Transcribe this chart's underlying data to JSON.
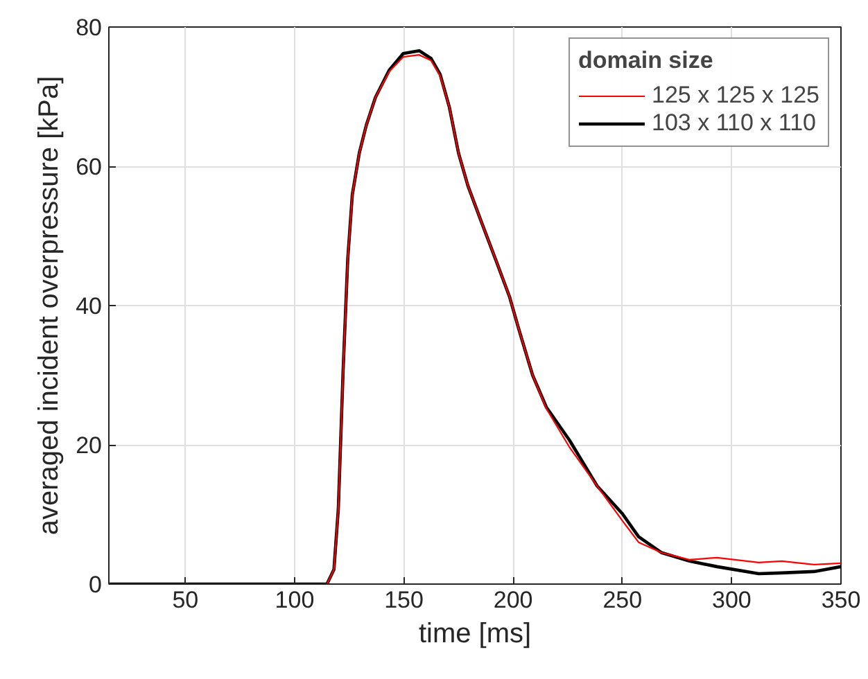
{
  "chart_data": {
    "type": "line",
    "xlabel": "time [ms]",
    "ylabel": "averaged incident overpressure [kPa]",
    "legend_title": "domain size",
    "xlim": [
      15,
      350
    ],
    "ylim": [
      0,
      80
    ],
    "xticks": [
      50,
      100,
      150,
      200,
      250,
      300,
      350
    ],
    "yticks": [
      0,
      20,
      40,
      60,
      80
    ],
    "grid": true,
    "legend": "top right",
    "line_style": "solid",
    "marker": "none",
    "x": [
      15,
      114.8,
      118,
      120,
      122.2,
      124.3,
      126.4,
      129.6,
      132.8,
      137,
      143.3,
      149.7,
      157,
      162.4,
      166.6,
      170.8,
      175,
      179.3,
      185.6,
      192,
      198.3,
      202.5,
      208.9,
      215.2,
      225.7,
      238.4,
      250,
      257.4,
      268,
      280.7,
      293.3,
      312.4,
      322.9,
      337.7,
      350
    ],
    "series": [
      {
        "name": "125 x 125 x 125",
        "color": "#ff0000",
        "values": [
          0,
          0,
          2.1,
          10.8,
          30.7,
          46.6,
          55.9,
          61.9,
          65.9,
          69.9,
          73.6,
          75.7,
          76.0,
          75.2,
          73.0,
          68.5,
          61.9,
          57.2,
          51.9,
          46.6,
          41.3,
          36.7,
          30,
          25.2,
          19.7,
          14.1,
          9.1,
          6.0,
          4.5,
          3.5,
          3.8,
          3.1,
          3.3,
          2.8,
          3.0
        ]
      },
      {
        "name": "103 x 110 x 110",
        "color": "#000000",
        "values": [
          0,
          0,
          2.1,
          10.8,
          30.7,
          46.6,
          55.9,
          61.9,
          65.9,
          69.9,
          73.8,
          76.2,
          76.6,
          75.5,
          73.2,
          68.5,
          61.9,
          57.2,
          51.9,
          46.6,
          41.3,
          36.7,
          30,
          25.4,
          20.7,
          14.1,
          10.1,
          6.8,
          4.5,
          3.3,
          2.5,
          1.5,
          1.6,
          1.8,
          2.5
        ]
      }
    ]
  }
}
